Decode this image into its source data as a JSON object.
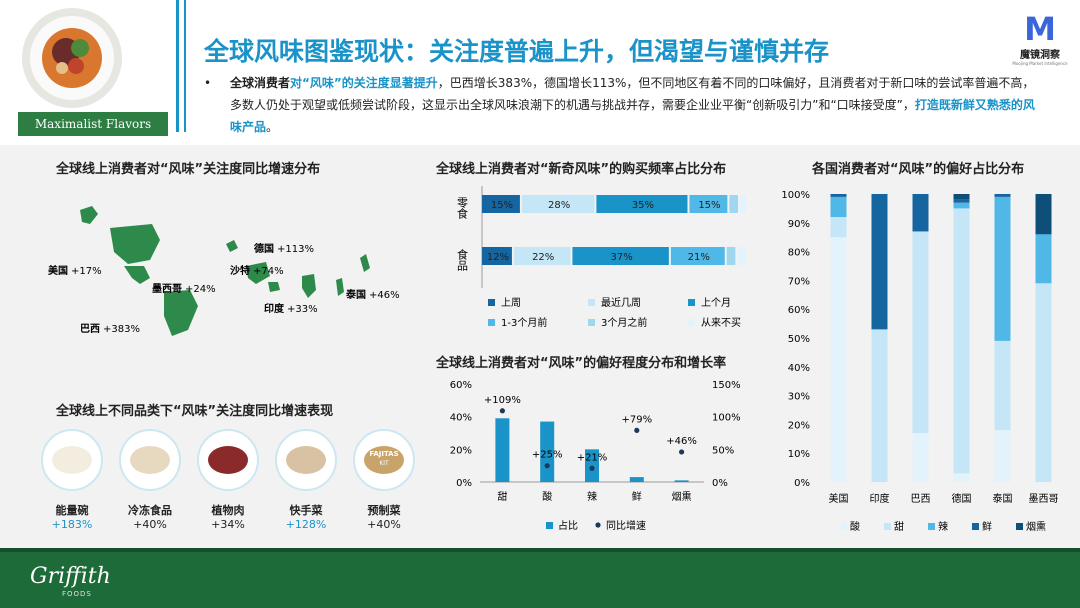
{
  "header": {
    "title": "全球风味图鉴现状：关注度普遍上升，但渴望与谨慎并存",
    "thumbnail_label": "Maximalist Flavors",
    "brand_logo_cn": "魔镜洞察",
    "brand_logo_en": "Moojing Market Intelligence",
    "bullet_parts": [
      {
        "text": "全球消费者",
        "style": "bold"
      },
      {
        "text": "对“风味”的关注度显著提升",
        "style": "hl"
      },
      {
        "text": "，巴西增长383%，德国增长113%，但不同地区有着不同的口味偏好，且消费者对于新口味的尝试率普遍不高，多数人仍处于观望或低频尝试阶段，这显示出全球风味浪潮下的机遇与挑战并存，需要企业业平衡“创新吸引力”和“口味接受度”，",
        "style": "normal"
      },
      {
        "text": "打造既新鲜又熟悉的风味产品",
        "style": "hl"
      },
      {
        "text": "。",
        "style": "normal"
      }
    ]
  },
  "colors": {
    "accent": "#1a93c8",
    "map_land": "#2e8a4a",
    "footer_green": "#1d6b38",
    "bar_dark": "#1565a0",
    "bar_mid": "#1a93c8",
    "bar_light": "#4fb8e6",
    "bar_pale": "#9fd6f0",
    "bar_paler": "#c5e6f6",
    "bar_palest": "#e2f3fb"
  },
  "map_section": {
    "title": "全球线上消费者对“风味”关注度同比增速分布",
    "labels": [
      {
        "country": "美国",
        "value": "+17%"
      },
      {
        "country": "墨西哥",
        "value": "+24%"
      },
      {
        "country": "巴西",
        "value": "+383%"
      },
      {
        "country": "德国",
        "value": "+113%"
      },
      {
        "country": "沙特",
        "value": "+74%"
      },
      {
        "country": "印度",
        "value": "+33%"
      },
      {
        "country": "泰国",
        "value": "+46%"
      }
    ]
  },
  "category_section": {
    "title": "全球线上不同品类下“风味”关注度同比增速表现",
    "items": [
      {
        "name": "能量碗",
        "value": "+183%",
        "highlight": true
      },
      {
        "name": "冷冻食品",
        "value": "+40%",
        "highlight": false
      },
      {
        "name": "植物肉",
        "value": "+34%",
        "highlight": false
      },
      {
        "name": "快手菜",
        "value": "+128%",
        "highlight": true
      },
      {
        "name": "预制菜",
        "value": "+40%",
        "highlight": false
      }
    ],
    "fajitas_box_text": "FAJITAS",
    "fajitas_box_subtext": "KIT"
  },
  "chart_data": [
    {
      "type": "bar",
      "orientation": "horizontal-stacked",
      "title": "全球线上消费者对“新奇风味”的购买频率占比分布",
      "categories": [
        "零食",
        "食品"
      ],
      "series": [
        {
          "name": "上周",
          "values": [
            15,
            12
          ]
        },
        {
          "name": "最近几周",
          "values": [
            28,
            22
          ]
        },
        {
          "name": "上个月",
          "values": [
            35,
            37
          ]
        },
        {
          "name": "1-3个月前",
          "values": [
            15,
            21
          ]
        },
        {
          "name": "3个月之前",
          "values": [
            4,
            4
          ]
        },
        {
          "name": "从来不买",
          "values": [
            3,
            4
          ]
        }
      ],
      "data_labels": [
        [
          "15%",
          "28%",
          "35%",
          "15%"
        ],
        [
          "12%",
          "22%",
          "37%",
          "21%"
        ]
      ],
      "legend": "bottom"
    },
    {
      "type": "bar",
      "title": "全球线上消费者对“风味”的偏好程度分布和增长率",
      "categories": [
        "甜",
        "酸",
        "辣",
        "鲜",
        "烟熏"
      ],
      "series": [
        {
          "name": "占比",
          "values": [
            39,
            37,
            20,
            3,
            1
          ],
          "axis": "left"
        },
        {
          "name": "同比增速",
          "values": [
            109,
            25,
            21,
            79,
            46
          ],
          "axis": "right",
          "type": "scatter"
        }
      ],
      "data_labels": [
        "+109%",
        "+25%",
        "+21%",
        "+79%",
        "+46%"
      ],
      "y_left_ticks": [
        "0%",
        "20%",
        "40%",
        "60%"
      ],
      "y_right_ticks": [
        "0%",
        "50%",
        "100%",
        "150%"
      ],
      "ylim_left": [
        0,
        60
      ],
      "ylim_right": [
        0,
        150
      ],
      "legend": "bottom"
    },
    {
      "type": "bar",
      "orientation": "vertical-stacked-100",
      "title": "各国消费者对“风味”的偏好占比分布",
      "categories": [
        "美国",
        "印度",
        "巴西",
        "德国",
        "泰国",
        "墨西哥"
      ],
      "series": [
        {
          "name": "酸",
          "values": [
            85,
            0,
            17,
            3,
            18,
            0
          ]
        },
        {
          "name": "甜",
          "values": [
            7,
            53,
            70,
            92,
            31,
            69
          ]
        },
        {
          "name": "辣",
          "values": [
            7,
            0,
            0,
            2,
            50,
            17
          ]
        },
        {
          "name": "鲜",
          "values": [
            1,
            47,
            13,
            1,
            1,
            0
          ]
        },
        {
          "name": "烟熏",
          "values": [
            0,
            0,
            0,
            2,
            0,
            14
          ]
        }
      ],
      "y_ticks": [
        "0%",
        "10%",
        "20%",
        "30%",
        "40%",
        "50%",
        "60%",
        "70%",
        "80%",
        "90%",
        "100%"
      ],
      "ylim": [
        0,
        100
      ],
      "legend": "bottom"
    }
  ],
  "footer": {
    "brand": "Griffith",
    "brand_sub": "FOODS"
  }
}
